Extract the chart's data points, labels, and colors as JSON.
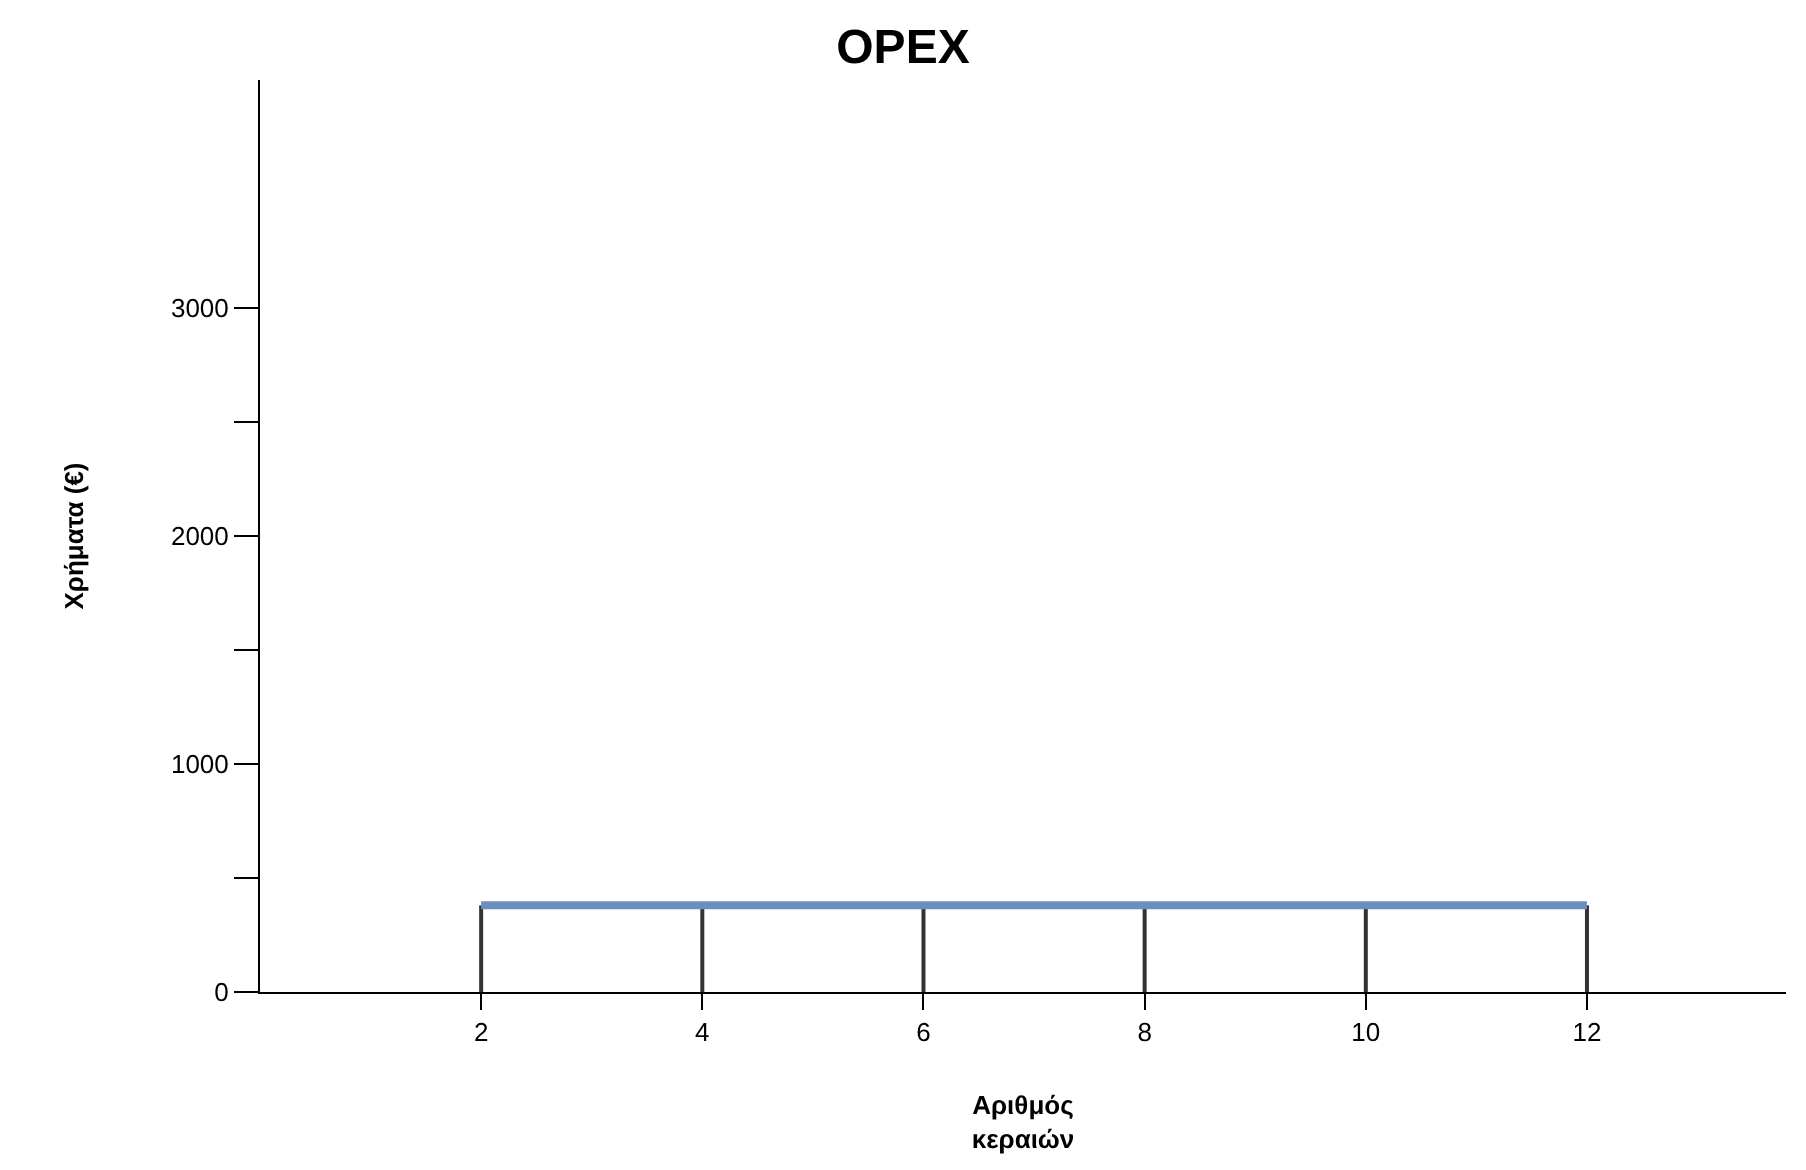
{
  "chart_data": {
    "type": "line",
    "title": "OPEX",
    "xlabel": "Αριθμός κεραιών",
    "ylabel": "Χρήματα (€)",
    "x": [
      2,
      4,
      6,
      8,
      10,
      12
    ],
    "series": [
      {
        "color": "#6c8ebf",
        "values": [
          380,
          380,
          380,
          380,
          380,
          380
        ],
        "errors": [
          [
            0,
            380
          ],
          [
            0,
            380
          ],
          [
            0,
            380
          ],
          [
            0,
            380
          ],
          [
            0,
            380
          ],
          [
            0,
            380
          ]
        ]
      }
    ],
    "xlim": [
      0,
      13.8
    ],
    "ylim": [
      0,
      4000
    ],
    "xticks": [
      2,
      4,
      6,
      8,
      10,
      12
    ],
    "yticks": [
      0,
      {
        "value": 500,
        "label": null
      },
      1000,
      {
        "value": 1500,
        "label": null
      },
      2000,
      {
        "value": 2500,
        "label": null
      },
      3000
    ],
    "marker": "none",
    "line_style": "solid"
  }
}
